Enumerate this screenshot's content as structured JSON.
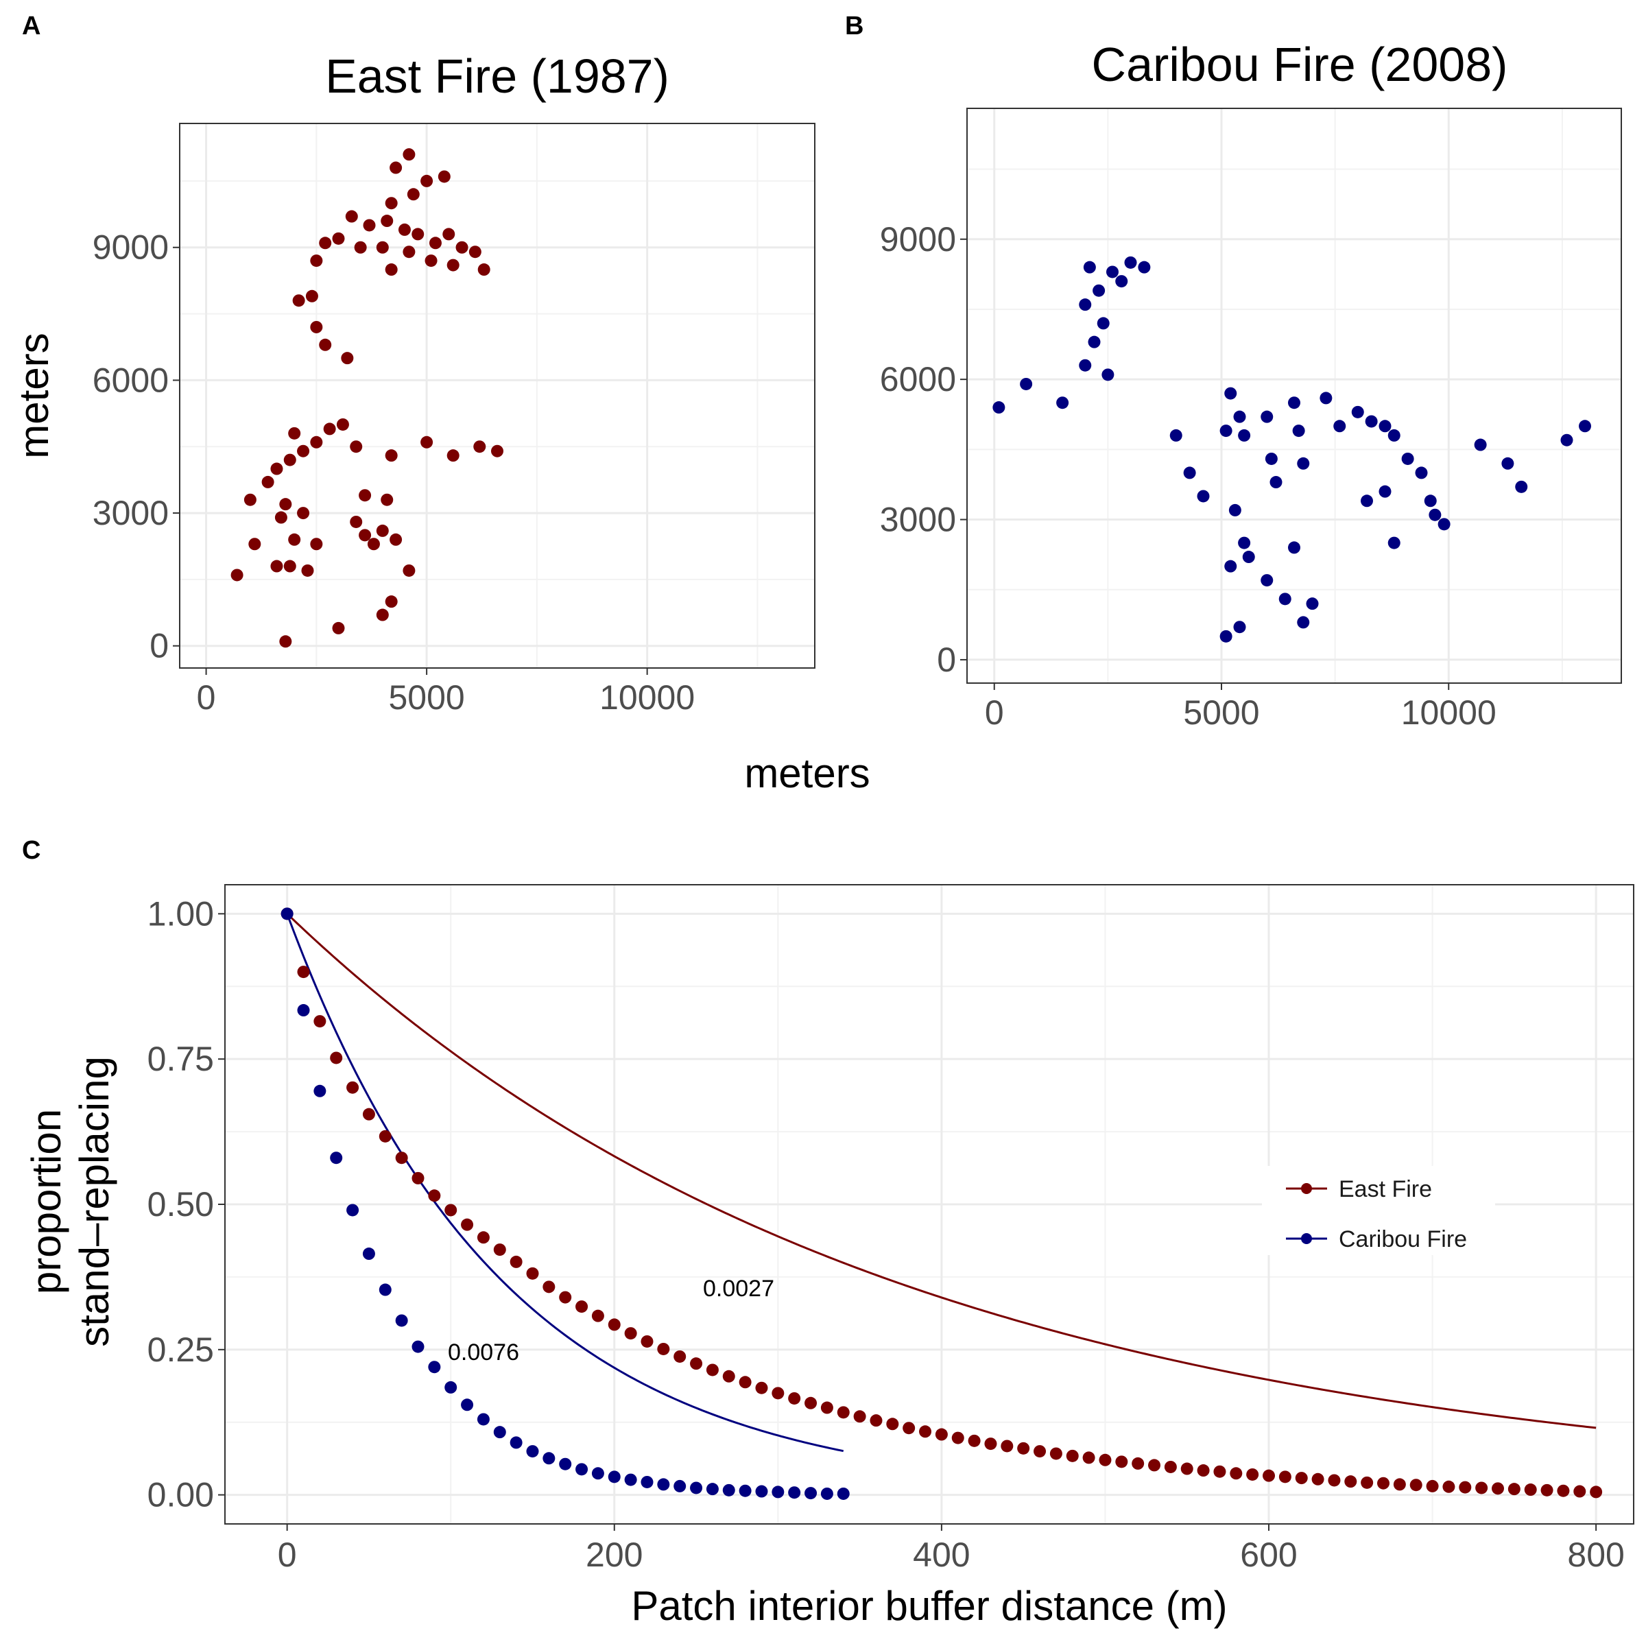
{
  "panels": {
    "a": {
      "letter": "A",
      "title": "East Fire (1987)",
      "color": "#7a0000"
    },
    "b": {
      "letter": "B",
      "title": "Caribou Fire (2008)",
      "color": "#00007f"
    },
    "c": {
      "letter": "C"
    }
  },
  "maps_shared_xlabel": "meters",
  "chart_data": [
    {
      "type": "scatter",
      "panel": "A",
      "title": "East Fire (1987)",
      "xlabel": "",
      "ylabel": "meters",
      "xlim": [
        -600,
        13800
      ],
      "ylim": [
        -500,
        11800
      ],
      "x_ticks": [
        0,
        5000,
        10000
      ],
      "y_ticks": [
        0,
        3000,
        6000,
        9000
      ],
      "grid": true,
      "series": [
        {
          "color": "#7a0000",
          "points": [
            [
              3700,
              9500
            ],
            [
              4100,
              9600
            ],
            [
              4500,
              9400
            ],
            [
              4800,
              9300
            ],
            [
              5200,
              9100
            ],
            [
              5500,
              9300
            ],
            [
              5800,
              9000
            ],
            [
              4200,
              10000
            ],
            [
              4700,
              10200
            ],
            [
              5000,
              10500
            ],
            [
              4300,
              10800
            ],
            [
              4600,
              11100
            ],
            [
              5400,
              10600
            ],
            [
              3500,
              9000
            ],
            [
              4000,
              9000
            ],
            [
              4600,
              8900
            ],
            [
              5100,
              8700
            ],
            [
              5600,
              8600
            ],
            [
              3000,
              9200
            ],
            [
              3300,
              9700
            ],
            [
              2700,
              9100
            ],
            [
              2500,
              8700
            ],
            [
              6100,
              8900
            ],
            [
              6300,
              8500
            ],
            [
              4200,
              8500
            ],
            [
              2400,
              7900
            ],
            [
              2100,
              7800
            ],
            [
              2500,
              7200
            ],
            [
              2700,
              6800
            ],
            [
              3200,
              6500
            ],
            [
              1600,
              4000
            ],
            [
              1900,
              4200
            ],
            [
              2200,
              4400
            ],
            [
              2500,
              4600
            ],
            [
              2800,
              4900
            ],
            [
              3100,
              5000
            ],
            [
              2000,
              4800
            ],
            [
              1400,
              3700
            ],
            [
              1000,
              3300
            ],
            [
              1800,
              3200
            ],
            [
              3400,
              4500
            ],
            [
              4200,
              4300
            ],
            [
              5000,
              4600
            ],
            [
              5600,
              4300
            ],
            [
              6200,
              4500
            ],
            [
              6600,
              4400
            ],
            [
              1900,
              1800
            ],
            [
              1600,
              1800
            ],
            [
              2300,
              1700
            ],
            [
              2000,
              2400
            ],
            [
              1700,
              2900
            ],
            [
              2200,
              3000
            ],
            [
              1100,
              2300
            ],
            [
              3600,
              2500
            ],
            [
              4000,
              2600
            ],
            [
              4300,
              2400
            ],
            [
              3800,
              2300
            ],
            [
              3400,
              2800
            ],
            [
              4600,
              1700
            ],
            [
              4200,
              1000
            ],
            [
              4000,
              700
            ],
            [
              3000,
              400
            ],
            [
              1800,
              100
            ],
            [
              700,
              1600
            ],
            [
              2500,
              2300
            ],
            [
              3600,
              3400
            ],
            [
              4100,
              3300
            ]
          ]
        }
      ]
    },
    {
      "type": "scatter",
      "panel": "B",
      "title": "Caribou Fire (2008)",
      "xlabel": "",
      "ylabel": "",
      "xlim": [
        -600,
        13800
      ],
      "ylim": [
        -500,
        11800
      ],
      "x_ticks": [
        0,
        5000,
        10000
      ],
      "y_ticks": [
        0,
        3000,
        6000,
        9000
      ],
      "grid": true,
      "series": [
        {
          "color": "#00007f",
          "points": [
            [
              2100,
              8400
            ],
            [
              2300,
              7900
            ],
            [
              2000,
              7600
            ],
            [
              2400,
              7200
            ],
            [
              2200,
              6800
            ],
            [
              2600,
              8300
            ],
            [
              3000,
              8500
            ],
            [
              3300,
              8400
            ],
            [
              2800,
              8100
            ],
            [
              2000,
              6300
            ],
            [
              2500,
              6100
            ],
            [
              1500,
              5500
            ],
            [
              700,
              5900
            ],
            [
              100,
              5400
            ],
            [
              5200,
              5700
            ],
            [
              5400,
              5200
            ],
            [
              5100,
              4900
            ],
            [
              5500,
              4800
            ],
            [
              6000,
              5200
            ],
            [
              6100,
              4300
            ],
            [
              6200,
              3800
            ],
            [
              6600,
              5500
            ],
            [
              6700,
              4900
            ],
            [
              6800,
              4200
            ],
            [
              7300,
              5600
            ],
            [
              7600,
              5000
            ],
            [
              8000,
              5300
            ],
            [
              8300,
              5100
            ],
            [
              8600,
              5000
            ],
            [
              8800,
              4800
            ],
            [
              9100,
              4300
            ],
            [
              9400,
              4000
            ],
            [
              9600,
              3400
            ],
            [
              9700,
              3100
            ],
            [
              9900,
              2900
            ],
            [
              8600,
              3600
            ],
            [
              8200,
              3400
            ],
            [
              8800,
              2500
            ],
            [
              5300,
              3200
            ],
            [
              5500,
              2500
            ],
            [
              5600,
              2200
            ],
            [
              5200,
              2000
            ],
            [
              6000,
              1700
            ],
            [
              6400,
              1300
            ],
            [
              7000,
              1200
            ],
            [
              6800,
              800
            ],
            [
              5400,
              700
            ],
            [
              5100,
              500
            ],
            [
              4600,
              3500
            ],
            [
              4300,
              4000
            ],
            [
              4000,
              4800
            ],
            [
              10700,
              4600
            ],
            [
              11300,
              4200
            ],
            [
              11600,
              3700
            ],
            [
              12600,
              4700
            ],
            [
              13000,
              5000
            ],
            [
              6600,
              2400
            ]
          ]
        }
      ]
    },
    {
      "type": "scatter",
      "panel": "C",
      "title": "",
      "xlabel": "Patch interior buffer distance (m)",
      "ylabel": "proportion\nstand–replacing",
      "ylabel_lines": [
        "proportion",
        "stand–replacing"
      ],
      "xlim": [
        -38,
        823
      ],
      "ylim": [
        -0.05,
        1.05
      ],
      "x_ticks": [
        0,
        200,
        400,
        600,
        800
      ],
      "y_ticks": [
        0.0,
        0.25,
        0.5,
        0.75,
        1.0
      ],
      "y_tick_labels": [
        "0.00",
        "0.25",
        "0.50",
        "0.75",
        "1.00"
      ],
      "grid": true,
      "legend_position": "right",
      "series": [
        {
          "name": "East Fire",
          "color": "#7a0000",
          "rate": 0.0027,
          "rate_label": "0.0027",
          "x": [
            0,
            10,
            20,
            30,
            40,
            50,
            60,
            70,
            80,
            90,
            100,
            110,
            120,
            130,
            140,
            150,
            160,
            170,
            180,
            190,
            200,
            210,
            220,
            230,
            240,
            250,
            260,
            270,
            280,
            290,
            300,
            310,
            320,
            330,
            340,
            350,
            360,
            370,
            380,
            390,
            400,
            410,
            420,
            430,
            440,
            450,
            460,
            470,
            480,
            490,
            500,
            510,
            520,
            530,
            540,
            550,
            560,
            570,
            580,
            590,
            600,
            610,
            620,
            630,
            640,
            650,
            660,
            670,
            680,
            690,
            700,
            710,
            720,
            730,
            740,
            750,
            760,
            770,
            780,
            790,
            800
          ],
          "y": [
            1.0,
            0.9,
            0.815,
            0.752,
            0.701,
            0.655,
            0.617,
            0.58,
            0.545,
            0.515,
            0.49,
            0.465,
            0.443,
            0.422,
            0.401,
            0.381,
            0.358,
            0.34,
            0.324,
            0.308,
            0.293,
            0.278,
            0.264,
            0.251,
            0.238,
            0.226,
            0.215,
            0.204,
            0.194,
            0.184,
            0.175,
            0.166,
            0.158,
            0.15,
            0.142,
            0.135,
            0.128,
            0.122,
            0.115,
            0.109,
            0.104,
            0.098,
            0.093,
            0.088,
            0.084,
            0.08,
            0.075,
            0.071,
            0.067,
            0.064,
            0.06,
            0.057,
            0.054,
            0.051,
            0.048,
            0.045,
            0.042,
            0.04,
            0.037,
            0.035,
            0.033,
            0.031,
            0.029,
            0.027,
            0.025,
            0.023,
            0.021,
            0.02,
            0.018,
            0.017,
            0.015,
            0.014,
            0.013,
            0.012,
            0.011,
            0.01,
            0.009,
            0.008,
            0.007,
            0.006,
            0.005
          ]
        },
        {
          "name": "Caribou Fire",
          "color": "#00007f",
          "rate": 0.0076,
          "rate_label": "0.0076",
          "x": [
            0,
            10,
            20,
            30,
            40,
            50,
            60,
            70,
            80,
            90,
            100,
            110,
            120,
            130,
            140,
            150,
            160,
            170,
            180,
            190,
            200,
            210,
            220,
            230,
            240,
            250,
            260,
            270,
            280,
            290,
            300,
            310,
            320,
            330,
            340
          ],
          "y": [
            1.0,
            0.834,
            0.695,
            0.58,
            0.49,
            0.415,
            0.353,
            0.3,
            0.255,
            0.22,
            0.185,
            0.155,
            0.13,
            0.108,
            0.09,
            0.075,
            0.063,
            0.053,
            0.044,
            0.037,
            0.031,
            0.026,
            0.022,
            0.018,
            0.015,
            0.012,
            0.01,
            0.008,
            0.007,
            0.006,
            0.005,
            0.004,
            0.003,
            0.002,
            0.002
          ]
        }
      ]
    }
  ]
}
